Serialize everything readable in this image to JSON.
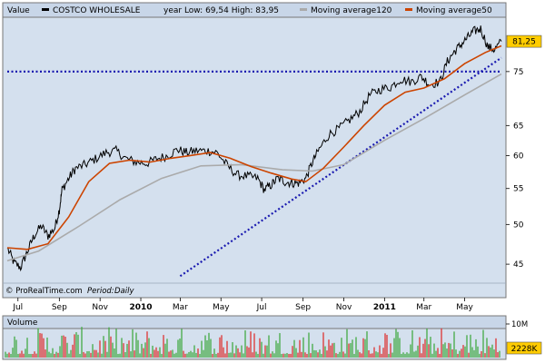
{
  "header": {
    "value_label": "Value",
    "symbol_name": "COSTCO WHOLESALE",
    "range_text": "year Low: 69,54 High: 83,95",
    "ma120_label": "Moving average120",
    "ma50_label": "Moving average50",
    "price_color": "#000000",
    "ma120_color": "#aaaaaa",
    "ma50_color": "#cc4400"
  },
  "watermark": {
    "text": "© ProRealTime.com",
    "period_label": "Period:",
    "period_value": "Daily"
  },
  "last_price": {
    "label": "81,25",
    "value": 81.25,
    "color": "#ffcc00"
  },
  "volume": {
    "title": "Volume",
    "tick_label": "10M",
    "tick_value": 10000000,
    "last_label": "2228K",
    "last_value": 2228000,
    "last_color": "#ffcc00"
  },
  "chart_data": {
    "type": "line",
    "scale": "log",
    "grid": false,
    "legend": "top",
    "yticks": [
      45,
      50,
      55,
      60,
      65,
      75
    ],
    "ylim": [
      43,
      86
    ],
    "xlim": [
      "2009-06-15",
      "2011-06-25"
    ],
    "xticks": [
      {
        "label": "Jul",
        "date": "2009-07-01",
        "bold": false
      },
      {
        "label": "Sep",
        "date": "2009-09-01",
        "bold": false
      },
      {
        "label": "Nov",
        "date": "2009-11-01",
        "bold": false
      },
      {
        "label": "2010",
        "date": "2010-01-01",
        "bold": true
      },
      {
        "label": "Mar",
        "date": "2010-03-01",
        "bold": false
      },
      {
        "label": "May",
        "date": "2010-05-01",
        "bold": false
      },
      {
        "label": "Jul",
        "date": "2010-07-01",
        "bold": false
      },
      {
        "label": "Sep",
        "date": "2010-09-01",
        "bold": false
      },
      {
        "label": "Nov",
        "date": "2010-11-01",
        "bold": false
      },
      {
        "label": "2011",
        "date": "2011-01-01",
        "bold": true
      },
      {
        "label": "Mar",
        "date": "2011-03-01",
        "bold": false
      },
      {
        "label": "May",
        "date": "2011-05-01",
        "bold": false
      }
    ],
    "series": [
      {
        "name": "COSTCO WHOLESALE",
        "color": "#000000",
        "points": [
          [
            "2009-06-15",
            47.0
          ],
          [
            "2009-06-25",
            45.2
          ],
          [
            "2009-07-05",
            44.6
          ],
          [
            "2009-07-15",
            46.5
          ],
          [
            "2009-07-25",
            48.5
          ],
          [
            "2009-08-05",
            49.8
          ],
          [
            "2009-08-15",
            48.5
          ],
          [
            "2009-08-25",
            49.5
          ],
          [
            "2009-09-01",
            52.0
          ],
          [
            "2009-09-05",
            54.8
          ],
          [
            "2009-09-15",
            56.5
          ],
          [
            "2009-09-25",
            58.0
          ],
          [
            "2009-10-10",
            58.6
          ],
          [
            "2009-10-25",
            59.5
          ],
          [
            "2009-11-10",
            60.5
          ],
          [
            "2009-11-25",
            60.8
          ],
          [
            "2009-12-10",
            59.5
          ],
          [
            "2009-12-25",
            59.0
          ],
          [
            "2010-01-10",
            58.8
          ],
          [
            "2010-01-25",
            59.5
          ],
          [
            "2010-02-10",
            60.0
          ],
          [
            "2010-02-25",
            61.0
          ],
          [
            "2010-03-10",
            60.5
          ],
          [
            "2010-03-25",
            60.8
          ],
          [
            "2010-04-10",
            60.8
          ],
          [
            "2010-04-25",
            60.5
          ],
          [
            "2010-05-10",
            58.5
          ],
          [
            "2010-05-25",
            57.0
          ],
          [
            "2010-06-10",
            56.8
          ],
          [
            "2010-06-25",
            56.5
          ],
          [
            "2010-07-05",
            54.8
          ],
          [
            "2010-07-15",
            55.5
          ],
          [
            "2010-07-25",
            56.5
          ],
          [
            "2010-08-05",
            56.0
          ],
          [
            "2010-08-15",
            55.8
          ],
          [
            "2010-08-25",
            55.8
          ],
          [
            "2010-09-05",
            56.5
          ],
          [
            "2010-09-15",
            59.0
          ],
          [
            "2010-09-25",
            61.0
          ],
          [
            "2010-10-10",
            63.5
          ],
          [
            "2010-10-25",
            64.5
          ],
          [
            "2010-11-10",
            66.0
          ],
          [
            "2010-11-25",
            67.5
          ],
          [
            "2010-12-10",
            70.5
          ],
          [
            "2010-12-25",
            71.5
          ],
          [
            "2011-01-10",
            72.0
          ],
          [
            "2011-01-25",
            73.5
          ],
          [
            "2011-02-10",
            73.0
          ],
          [
            "2011-02-25",
            74.0
          ],
          [
            "2011-03-10",
            72.5
          ],
          [
            "2011-03-25",
            73.0
          ],
          [
            "2011-04-05",
            77.0
          ],
          [
            "2011-04-15",
            79.0
          ],
          [
            "2011-04-25",
            80.5
          ],
          [
            "2011-05-05",
            82.0
          ],
          [
            "2011-05-15",
            83.5
          ],
          [
            "2011-05-25",
            84.0
          ],
          [
            "2011-06-05",
            80.0
          ],
          [
            "2011-06-15",
            79.5
          ],
          [
            "2011-06-25",
            81.25
          ]
        ]
      },
      {
        "name": "Moving average120",
        "color": "#aaaaaa",
        "points": [
          [
            "2009-06-15",
            45.4
          ],
          [
            "2009-08-01",
            46.6
          ],
          [
            "2009-10-01",
            49.8
          ],
          [
            "2009-12-01",
            53.4
          ],
          [
            "2010-02-01",
            56.5
          ],
          [
            "2010-04-01",
            58.4
          ],
          [
            "2010-06-01",
            58.6
          ],
          [
            "2010-08-01",
            57.8
          ],
          [
            "2010-09-15",
            57.6
          ],
          [
            "2010-11-01",
            58.6
          ],
          [
            "2011-01-01",
            62.5
          ],
          [
            "2011-03-01",
            66.2
          ],
          [
            "2011-05-01",
            70.5
          ],
          [
            "2011-06-25",
            74.5
          ]
        ]
      },
      {
        "name": "Moving average50",
        "color": "#cc4400",
        "points": [
          [
            "2009-06-15",
            47.0
          ],
          [
            "2009-07-15",
            46.8
          ],
          [
            "2009-08-15",
            47.5
          ],
          [
            "2009-09-15",
            51.0
          ],
          [
            "2009-10-15",
            56.0
          ],
          [
            "2009-11-15",
            58.8
          ],
          [
            "2009-12-15",
            59.3
          ],
          [
            "2010-01-15",
            59.0
          ],
          [
            "2010-02-15",
            59.6
          ],
          [
            "2010-03-15",
            60.0
          ],
          [
            "2010-04-15",
            60.5
          ],
          [
            "2010-05-15",
            59.6
          ],
          [
            "2010-06-15",
            58.3
          ],
          [
            "2010-07-15",
            57.3
          ],
          [
            "2010-08-15",
            56.4
          ],
          [
            "2010-09-05",
            56.0
          ],
          [
            "2010-10-01",
            58.0
          ],
          [
            "2010-11-01",
            61.4
          ],
          [
            "2010-12-01",
            65.0
          ],
          [
            "2011-01-01",
            68.6
          ],
          [
            "2011-02-01",
            71.0
          ],
          [
            "2011-03-01",
            71.8
          ],
          [
            "2011-04-01",
            73.6
          ],
          [
            "2011-05-01",
            76.6
          ],
          [
            "2011-06-01",
            78.9
          ],
          [
            "2011-06-25",
            80.3
          ]
        ]
      }
    ],
    "trendlines": [
      {
        "name": "support-trendline",
        "color": "#1a1ab0",
        "style": "dotted",
        "start": [
          "2010-03-01",
          43.6
        ],
        "end": [
          "2011-06-25",
          77.8
        ]
      },
      {
        "name": "resistance-line",
        "color": "#1a1ab0",
        "style": "dotted",
        "start": [
          "2009-06-15",
          75.0
        ],
        "end": [
          "2011-06-25",
          75.0
        ]
      }
    ]
  }
}
